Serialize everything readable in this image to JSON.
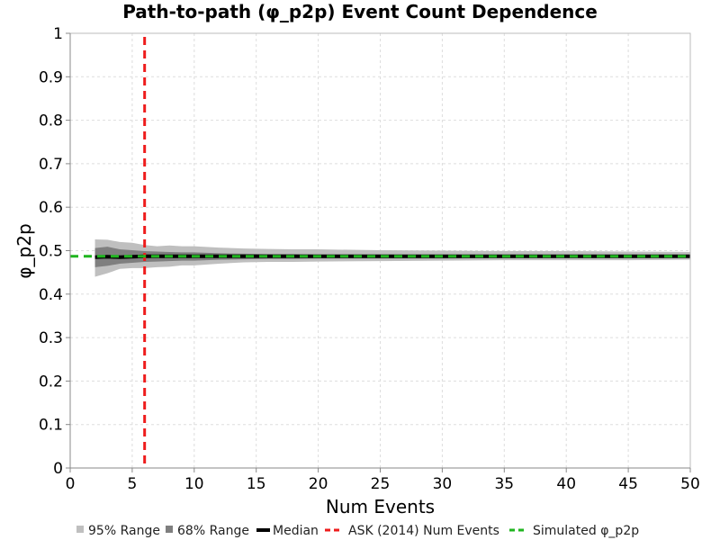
{
  "chart_data": {
    "type": "line",
    "title": "Path-to-path (φ_p2p) Event Count Dependence",
    "xlabel": "Num Events",
    "ylabel": "φ_p2p",
    "xlim": [
      0,
      50
    ],
    "ylim": [
      0,
      1
    ],
    "x_ticks": [
      "0",
      "5",
      "10",
      "15",
      "20",
      "25",
      "30",
      "35",
      "40",
      "45",
      "50"
    ],
    "y_ticks": [
      "0",
      "0.1",
      "0.2",
      "0.3",
      "0.4",
      "0.5",
      "0.6",
      "0.7",
      "0.8",
      "0.9",
      "1"
    ],
    "grid": true,
    "legend_position": "bottom",
    "x": [
      2,
      3,
      4,
      5,
      6,
      7,
      8,
      9,
      10,
      12,
      14,
      16,
      18,
      20,
      25,
      30,
      35,
      40,
      45,
      50
    ],
    "series": [
      {
        "name": "95% Range",
        "kind": "band",
        "color": "#bfbfbf",
        "lower": [
          0.44,
          0.448,
          0.458,
          0.46,
          0.46,
          0.462,
          0.463,
          0.466,
          0.466,
          0.47,
          0.473,
          0.474,
          0.474,
          0.475,
          0.476,
          0.477,
          0.478,
          0.478,
          0.478,
          0.479
        ],
        "upper": [
          0.526,
          0.525,
          0.52,
          0.518,
          0.513,
          0.51,
          0.512,
          0.51,
          0.51,
          0.507,
          0.505,
          0.504,
          0.503,
          0.503,
          0.501,
          0.5,
          0.499,
          0.499,
          0.498,
          0.497
        ]
      },
      {
        "name": "68% Range",
        "kind": "band",
        "color": "#7f7f7f",
        "lower": [
          0.462,
          0.465,
          0.47,
          0.472,
          0.474,
          0.475,
          0.476,
          0.477,
          0.477,
          0.479,
          0.48,
          0.481,
          0.481,
          0.482,
          0.482,
          0.482,
          0.483,
          0.483,
          0.483,
          0.484
        ],
        "upper": [
          0.506,
          0.509,
          0.503,
          0.501,
          0.499,
          0.498,
          0.497,
          0.496,
          0.496,
          0.494,
          0.493,
          0.492,
          0.492,
          0.491,
          0.491,
          0.49,
          0.49,
          0.49,
          0.49,
          0.489
        ]
      },
      {
        "name": "Median",
        "kind": "line",
        "color": "#000000",
        "values": [
          0.485,
          0.486,
          0.485,
          0.486,
          0.487,
          0.487,
          0.487,
          0.487,
          0.487,
          0.487,
          0.487,
          0.487,
          0.487,
          0.487,
          0.487,
          0.487,
          0.487,
          0.487,
          0.487,
          0.487
        ]
      }
    ],
    "reference_lines": [
      {
        "name": "ASK (2014) Num Events",
        "orientation": "vertical",
        "value": 6,
        "color": "#ee1c1c",
        "style": "dashed"
      },
      {
        "name": "Simulated φ_p2p",
        "orientation": "horizontal",
        "value": 0.487,
        "color": "#1fb51f",
        "style": "dashed"
      }
    ],
    "legend": [
      {
        "label": "95% Range",
        "swatch": "box",
        "color": "#bfbfbf"
      },
      {
        "label": "68% Range",
        "swatch": "box",
        "color": "#7f7f7f"
      },
      {
        "label": "Median",
        "swatch": "line",
        "color": "#000000"
      },
      {
        "label": "ASK (2014) Num Events",
        "swatch": "dash",
        "color": "#ee1c1c"
      },
      {
        "label": "Simulated φ_p2p",
        "swatch": "dash",
        "color": "#1fb51f"
      }
    ]
  }
}
